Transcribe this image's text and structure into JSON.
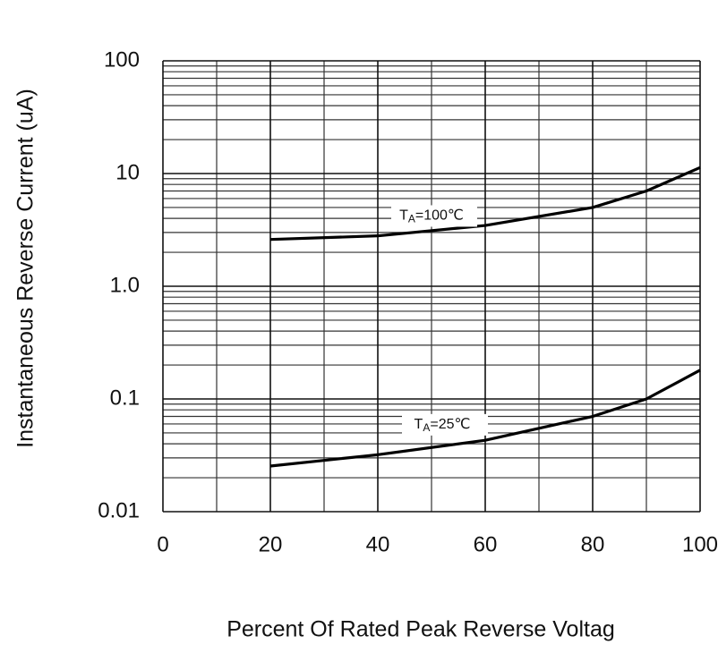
{
  "chart_data": {
    "type": "line",
    "x_label": "Percent  Of  Rated  Peak Reverse  Voltag",
    "y_label": "Instantaneous  Reverse Current (uA)",
    "log_y": true,
    "grid": true,
    "xlim": [
      0,
      100
    ],
    "xticks": [
      0,
      20,
      40,
      60,
      80,
      100
    ],
    "x_minor_ticks": [
      10,
      30,
      50,
      70,
      90
    ],
    "ylim": [
      0.01,
      100
    ],
    "yticks": [
      0.01,
      0.1,
      {
        "value": 1,
        "label": "1.0"
      },
      10,
      100
    ],
    "y_minor_ticks": [
      0.02,
      0.03,
      0.04,
      0.05,
      0.06,
      0.07,
      0.08,
      0.09,
      0.2,
      0.3,
      0.4,
      0.5,
      0.6,
      0.7,
      0.8,
      0.9,
      2,
      3,
      4,
      5,
      6,
      7,
      8,
      9,
      20,
      30,
      40,
      50,
      60,
      70,
      80,
      90
    ],
    "x": [
      20,
      40,
      60,
      80,
      90,
      100
    ],
    "series": [
      {
        "color": "#000000",
        "values": [
          2.6,
          2.8,
          3.46,
          5.0,
          7.0,
          11.3
        ]
      },
      {
        "color": "#000000",
        "values": [
          0.0254,
          0.032,
          0.043,
          0.07,
          0.1,
          0.18
        ]
      }
    ],
    "annotations": [
      {
        "parts": [
          "T",
          "A",
          "=100℃"
        ],
        "x": 50,
        "y": 4.2
      },
      {
        "parts": [
          "T",
          "A",
          "=25℃"
        ],
        "x": 52,
        "y": 0.059
      }
    ]
  }
}
